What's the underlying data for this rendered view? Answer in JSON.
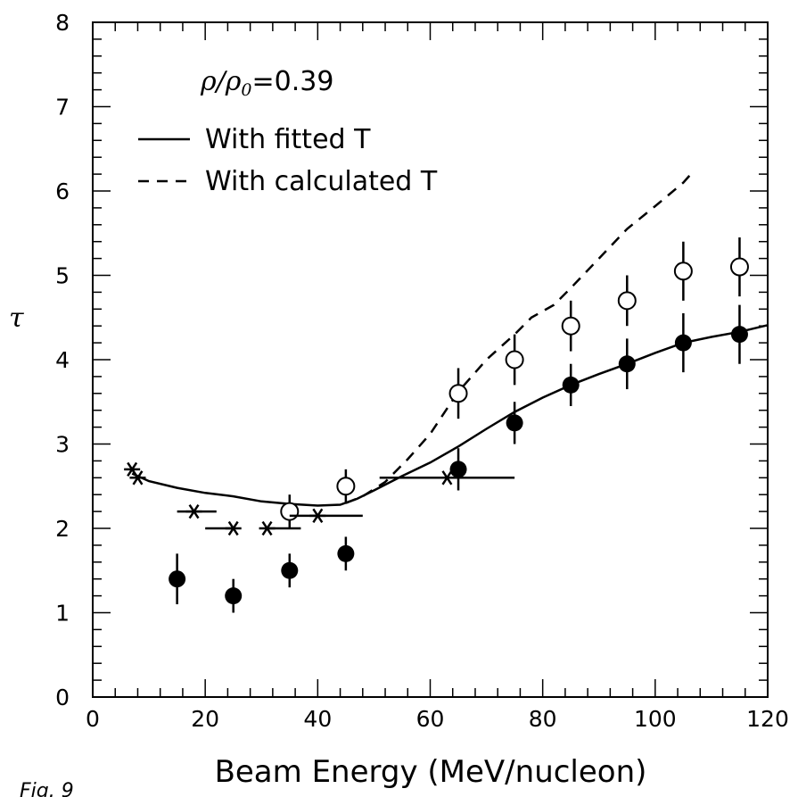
{
  "chart_data": {
    "type": "scatter",
    "xlabel": "Beam Energy (MeV/nucleon)",
    "ylabel": "τ",
    "xlim": [
      0,
      120
    ],
    "ylim": [
      0,
      8
    ],
    "x_ticks": [
      "0",
      "20",
      "40",
      "60",
      "80",
      "100",
      "120"
    ],
    "y_ticks": [
      "0",
      "1",
      "2",
      "3",
      "4",
      "5",
      "6",
      "7",
      "8"
    ],
    "grid": false,
    "annotation": {
      "rho_symbol": "ρ/ρ",
      "rho_subscript": "0",
      "rho_value": "=0.39"
    },
    "legend": {
      "placement": "top-left",
      "entries": [
        "With fitted T",
        "With calculated T"
      ]
    },
    "caption": "Fig. 9",
    "series": [
      {
        "name": "With fitted T",
        "kind": "line",
        "style": "solid",
        "x": [
          7,
          10,
          15,
          20,
          25,
          30,
          35,
          40,
          44,
          47,
          50,
          55,
          60,
          65,
          70,
          75,
          80,
          85,
          90,
          95,
          100,
          105,
          110,
          115,
          120
        ],
        "y": [
          2.65,
          2.56,
          2.48,
          2.42,
          2.38,
          2.32,
          2.29,
          2.27,
          2.28,
          2.35,
          2.45,
          2.62,
          2.78,
          2.97,
          3.18,
          3.38,
          3.55,
          3.7,
          3.83,
          3.95,
          4.08,
          4.2,
          4.27,
          4.33,
          4.41
        ]
      },
      {
        "name": "With calculated T",
        "kind": "line",
        "style": "dashed",
        "x": [
          45,
          48,
          52,
          56,
          60,
          65,
          70,
          75,
          78,
          82,
          85,
          90,
          95,
          100,
          105,
          107
        ],
        "y": [
          2.3,
          2.38,
          2.55,
          2.82,
          3.12,
          3.62,
          4.0,
          4.3,
          4.5,
          4.65,
          4.85,
          5.2,
          5.55,
          5.82,
          6.1,
          6.25
        ]
      },
      {
        "kind": "open-circles",
        "x": [
          35,
          45,
          65,
          75,
          85,
          95,
          105,
          115
        ],
        "y": [
          2.2,
          2.5,
          3.6,
          4.0,
          4.4,
          4.7,
          5.05,
          5.1
        ],
        "err": [
          0.2,
          0.2,
          0.3,
          0.3,
          0.3,
          0.3,
          0.35,
          0.35
        ]
      },
      {
        "kind": "filled-circles",
        "x": [
          15,
          25,
          35,
          45,
          65,
          75,
          85,
          95,
          105,
          115
        ],
        "y": [
          1.4,
          1.2,
          1.5,
          1.7,
          2.7,
          3.25,
          3.7,
          3.95,
          4.2,
          4.3
        ],
        "err": [
          0.3,
          0.2,
          0.2,
          0.2,
          0.25,
          0.25,
          0.25,
          0.3,
          0.35,
          0.35
        ]
      },
      {
        "kind": "stars",
        "x": [
          7,
          8,
          18,
          25,
          31,
          40,
          63
        ],
        "y": [
          2.7,
          2.6,
          2.2,
          2.0,
          2.0,
          2.15,
          2.6
        ],
        "xerr_left": [
          0,
          0,
          3,
          5,
          0,
          5,
          12
        ],
        "xerr_right": [
          0,
          0,
          4,
          0,
          6,
          8,
          12
        ]
      }
    ]
  }
}
